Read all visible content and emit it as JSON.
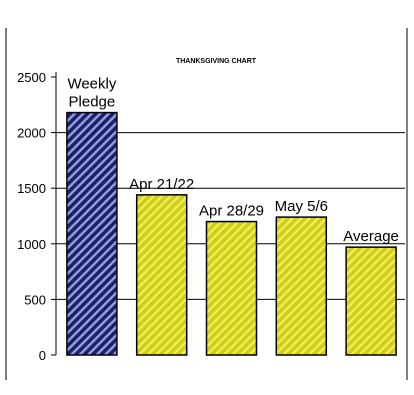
{
  "chart_data": {
    "type": "bar",
    "title": "THANKSGIVING CHART",
    "categories": [
      "Weekly Pledge",
      "Apr 21/22",
      "Apr 28/29",
      "May 5/6",
      "Average"
    ],
    "category_labels": [
      [
        "Weekly",
        "Pledge"
      ],
      [
        "Apr 21/22"
      ],
      [
        "Apr 28/29"
      ],
      [
        "May 5/6"
      ],
      [
        "Average"
      ]
    ],
    "values": [
      2180,
      1440,
      1200,
      1240,
      970
    ],
    "ylim": [
      0,
      2500
    ],
    "yticks": [
      "0",
      "500",
      "1000",
      "1500",
      "2000",
      "2500"
    ],
    "ytick_values": [
      0,
      500,
      1000,
      1500,
      2000,
      2500
    ],
    "highlight_line": 1500,
    "xlabel": "",
    "ylabel": "",
    "grid": true,
    "legend": "none",
    "colors": {
      "pledge_bar": "#1c1f6e",
      "pledge_stripe": "#8e9fd6",
      "week_bar": "#cfcc22",
      "week_stripe": "#f2ee4a",
      "outline": "#000000"
    }
  }
}
